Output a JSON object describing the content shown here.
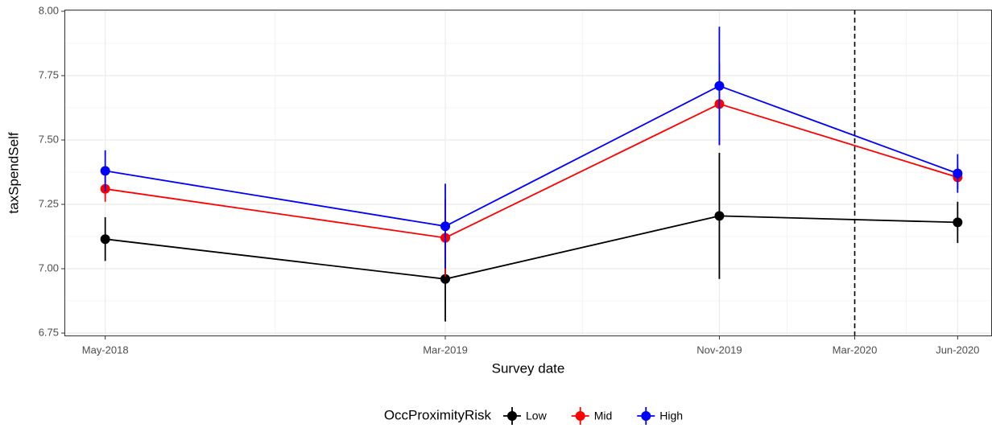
{
  "chart_data": {
    "type": "line",
    "x_label": "Survey date",
    "y_label": "taxSpendSelf",
    "legend_title": "OccProximityRisk",
    "x": [
      "May-2018",
      "Mar-2019",
      "Nov-2019",
      "Jun-2020"
    ],
    "xlim": [
      "Apr-2018",
      "Jul-2020"
    ],
    "xticks": [
      "May-2018",
      "Mar-2019",
      "Nov-2019",
      "Mar-2020",
      "Jun-2020"
    ],
    "vline": "Mar-2020",
    "ylim": [
      6.75,
      8.0
    ],
    "yticks": [
      {
        "value": 6.75,
        "label": "6.75"
      },
      {
        "value": 7,
        "label": "7.00"
      },
      {
        "value": 7.25,
        "label": "7.25"
      },
      {
        "value": 7.5,
        "label": "7.50"
      },
      {
        "value": 7.75,
        "label": "7.75"
      },
      {
        "value": 8,
        "label": "8.00"
      }
    ],
    "grid": true,
    "legend_position": "bottom",
    "series": [
      {
        "name": "Low",
        "color": "#000000",
        "values": [
          7.115,
          6.96,
          7.205,
          7.18
        ],
        "errors": [
          0.085,
          0.165,
          0.245,
          0.08
        ]
      },
      {
        "name": "Mid",
        "color": "#ff0000",
        "values": [
          7.31,
          7.12,
          7.64,
          7.355
        ],
        "errors": [
          0.05,
          0.15,
          0.16,
          0.045
        ]
      },
      {
        "name": "High",
        "color": "#0000ff",
        "values": [
          7.38,
          7.165,
          7.71,
          7.37
        ],
        "errors": [
          0.08,
          0.165,
          0.23,
          0.075
        ]
      }
    ]
  }
}
